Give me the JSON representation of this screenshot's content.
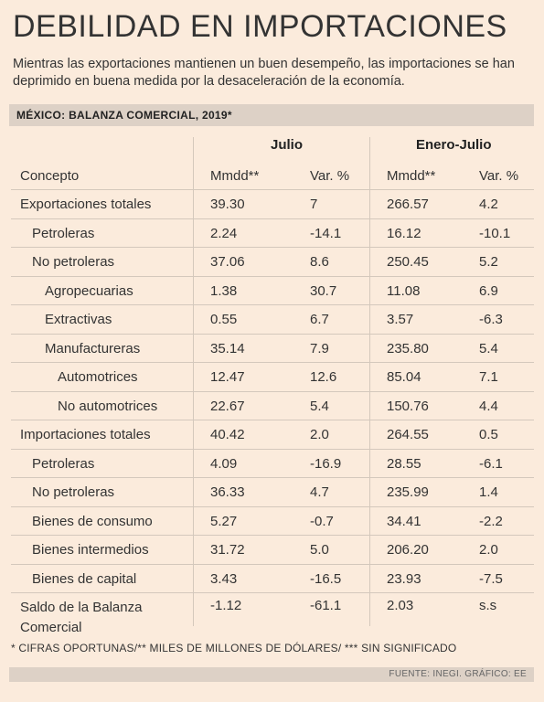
{
  "title": "DEBILIDAD EN IMPORTACIONES",
  "subtitle": "Mientras las exportaciones mantienen un buen desempeño, las importaciones se han deprimido en buena medida por la desaceleración de la economía.",
  "table_title": "MÉXICO: BALANZA COMERCIAL, 2019*",
  "groups": [
    "Julio",
    "Enero-Julio"
  ],
  "columns": [
    "Concepto",
    "Mmdd**",
    "Var. %",
    "Mmdd**",
    "Var. %"
  ],
  "rows": [
    {
      "label": "Exportaciones totales",
      "v": [
        "39.30",
        "7",
        "266.57",
        "4.2"
      ]
    },
    {
      "label": "Petroleras",
      "v": [
        "2.24",
        "-14.1",
        "16.12",
        "-10.1"
      ]
    },
    {
      "label": "No petroleras",
      "v": [
        "37.06",
        "8.6",
        "250.45",
        "5.2"
      ]
    },
    {
      "label": "Agropecuarias",
      "v": [
        "1.38",
        "30.7",
        "11.08",
        "6.9"
      ]
    },
    {
      "label": "Extractivas",
      "v": [
        "0.55",
        "6.7",
        "3.57",
        "-6.3"
      ]
    },
    {
      "label": "Manufactureras",
      "v": [
        "35.14",
        "7.9",
        "235.80",
        "5.4"
      ]
    },
    {
      "label": "Automotrices",
      "v": [
        "12.47",
        "12.6",
        "85.04",
        "7.1"
      ]
    },
    {
      "label": "No automotrices",
      "v": [
        "22.67",
        "5.4",
        "150.76",
        "4.4"
      ]
    },
    {
      "label": "Importaciones totales",
      "v": [
        "40.42",
        "2.0",
        "264.55",
        "0.5"
      ]
    },
    {
      "label": "Petroleras",
      "v": [
        "4.09",
        "-16.9",
        "28.55",
        "-6.1"
      ]
    },
    {
      "label": "No petroleras",
      "v": [
        "36.33",
        "4.7",
        "235.99",
        "1.4"
      ]
    },
    {
      "label": "Bienes de consumo",
      "v": [
        "5.27",
        "-0.7",
        "34.41",
        "-2.2"
      ]
    },
    {
      "label": "Bienes intermedios",
      "v": [
        "31.72",
        "5.0",
        "206.20",
        "2.0"
      ]
    },
    {
      "label": "Bienes de capital",
      "v": [
        "3.43",
        "-16.5",
        "23.93",
        "-7.5"
      ]
    },
    {
      "label": "Saldo de la Balanza Comercial",
      "v": [
        "-1.12",
        "-61.1",
        "2.03",
        "s.s"
      ]
    }
  ],
  "note": "* CIFRAS OPORTUNAS/** MILES DE MILLONES DE DÓLARES/ *** SIN SIGNIFICADO",
  "source": "FUENTE: INEGI. GRÁFICO: EE"
}
